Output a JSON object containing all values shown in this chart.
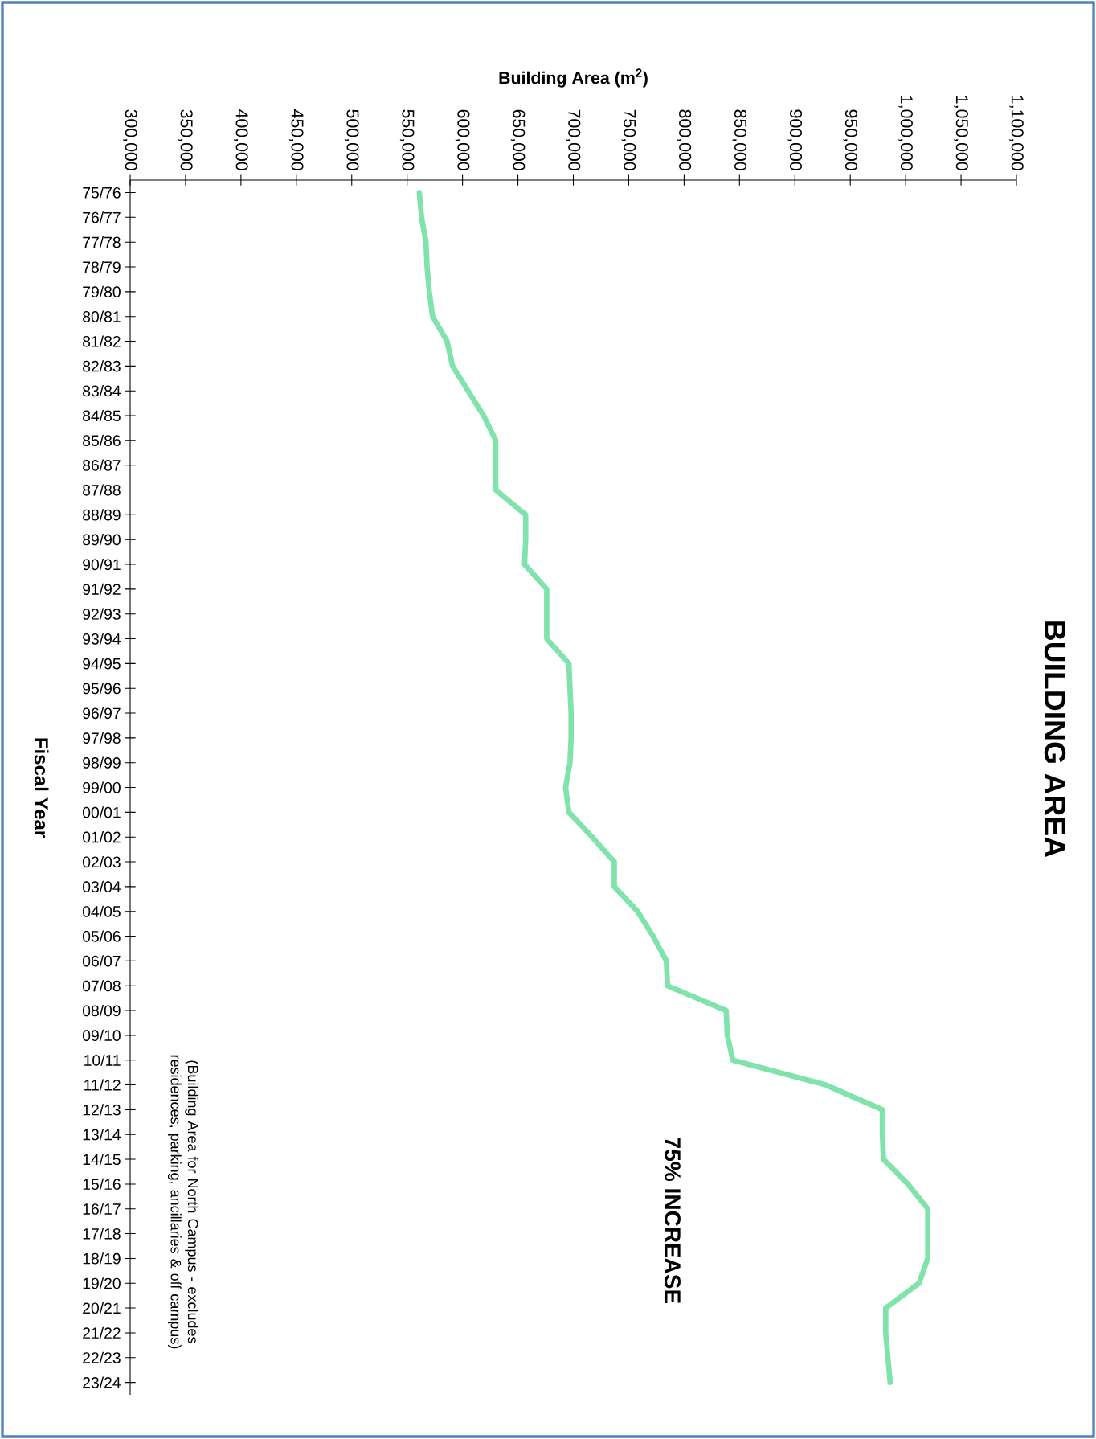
{
  "chart_data": {
    "type": "line",
    "title": "BUILDING AREA",
    "xlabel": "Building Area (m$^{2}$)",
    "ylabel": "Fiscal Year",
    "orientation": "horizontal",
    "categories": [
      "75/76",
      "76/77",
      "77/78",
      "78/79",
      "79/80",
      "80/81",
      "81/82",
      "82/83",
      "83/84",
      "84/85",
      "85/86",
      "86/87",
      "87/88",
      "88/89",
      "89/90",
      "90/91",
      "91/92",
      "92/93",
      "93/94",
      "94/95",
      "95/96",
      "96/97",
      "97/98",
      "98/99",
      "99/00",
      "00/01",
      "01/02",
      "02/03",
      "03/04",
      "04/05",
      "05/06",
      "06/07",
      "07/08",
      "08/09",
      "09/10",
      "10/11",
      "11/12",
      "12/13",
      "13/14",
      "14/15",
      "15/16",
      "16/17",
      "17/18",
      "18/19",
      "19/20",
      "20/21",
      "21/22",
      "22/23",
      "23/24"
    ],
    "series": [
      {
        "color": "#7fe3ab",
        "values": [
          561000,
          563000,
          567000,
          568000,
          570000,
          573000,
          586000,
          591000,
          605000,
          619000,
          630000,
          630000,
          630000,
          657000,
          657000,
          656000,
          676000,
          676000,
          676000,
          696000,
          697000,
          698000,
          698000,
          697000,
          693000,
          696000,
          717000,
          737000,
          737000,
          758000,
          772000,
          784000,
          785000,
          838000,
          839000,
          844000,
          928000,
          979000,
          979000,
          980000,
          1002000,
          1020000,
          1020000,
          1020000,
          1012000,
          982000,
          982000,
          984000,
          986000
        ]
      }
    ],
    "xlim": [
      300000,
      1100000
    ],
    "xticks": [
      {
        "value": 300000,
        "label": "300,000"
      },
      {
        "value": 350000,
        "label": "350,000"
      },
      {
        "value": 400000,
        "label": "400,000"
      },
      {
        "value": 450000,
        "label": "450,000"
      },
      {
        "value": 500000,
        "label": "500,000"
      },
      {
        "value": 550000,
        "label": "550,000"
      },
      {
        "value": 600000,
        "label": "600,000"
      },
      {
        "value": 650000,
        "label": "650,000"
      },
      {
        "value": 700000,
        "label": "700,000"
      },
      {
        "value": 750000,
        "label": "750,000"
      },
      {
        "value": 800000,
        "label": "800,000"
      },
      {
        "value": 850000,
        "label": "850,000"
      },
      {
        "value": 900000,
        "label": "900,000"
      },
      {
        "value": 950000,
        "label": "950,000"
      },
      {
        "value": 1000000,
        "label": "1,000,000"
      },
      {
        "value": 1050000,
        "label": "1,050,000"
      },
      {
        "value": 1100000,
        "label": "1,100,000"
      }
    ],
    "line_style": "solid",
    "annotations": [
      "75% INCREASE",
      "(Building Area for North Campus - excludes residences, parking, ancillaries & off campus)"
    ]
  }
}
